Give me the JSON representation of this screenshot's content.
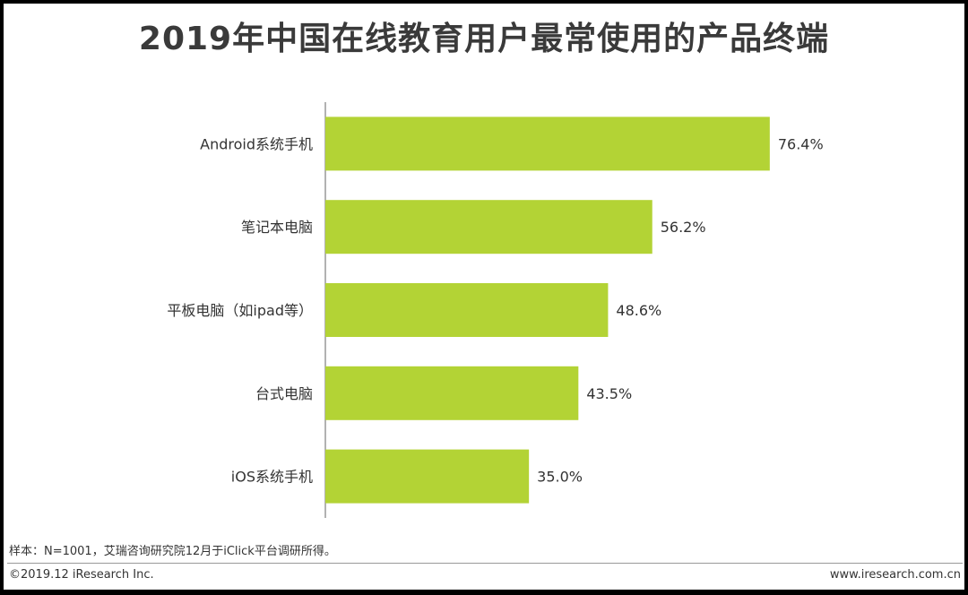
{
  "chart_data": {
    "type": "bar",
    "orientation": "horizontal",
    "title": "2019年中国在线教育用户最常使用的产品终端",
    "categories": [
      "Android系统手机",
      "笔记本电脑",
      "平板电脑（如ipad等）",
      "台式电脑",
      "iOS系统手机"
    ],
    "values": [
      76.4,
      56.2,
      48.6,
      43.5,
      35.0
    ],
    "data_labels": [
      "76.4%",
      "56.2%",
      "48.6%",
      "43.5%",
      "35.0%"
    ],
    "xlim": [
      0,
      100
    ],
    "grid": false,
    "legend": "none",
    "bar_color": "#b3d335"
  },
  "footnote": "样本：N=1001，艾瑞咨询研究院12月于iClick平台调研所得。",
  "copyright": "©2019.12 iResearch Inc.",
  "website": "www.iresearch.com.cn"
}
